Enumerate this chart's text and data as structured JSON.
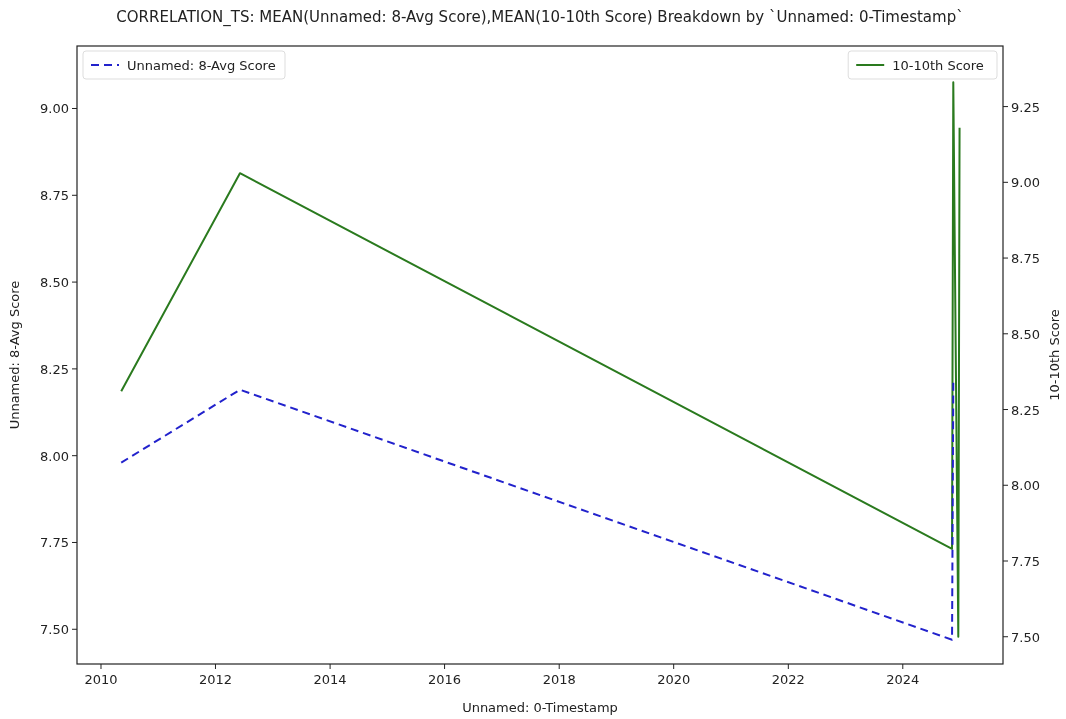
{
  "chart_data": {
    "type": "line",
    "title": "CORRELATION_TS: MEAN(Unnamed: 8-Avg Score),MEAN(10-10th Score) Breakdown by `Unnamed: 0-Timestamp`",
    "xlabel": "Unnamed: 0-Timestamp",
    "ylabel": "Unnamed: 8-Avg Score",
    "y2label": "10-10th Score",
    "xlim": [
      "2009-08",
      "2025-10"
    ],
    "xticks": [
      "2010",
      "2012",
      "2014",
      "2016",
      "2018",
      "2020",
      "2022",
      "2024"
    ],
    "ylim": [
      7.4,
      9.18
    ],
    "yticks": [
      {
        "value": 7.5,
        "label": "7.50"
      },
      {
        "value": 7.75,
        "label": "7.75"
      },
      {
        "value": 8,
        "label": "8.00"
      },
      {
        "value": 8.25,
        "label": "8.25"
      },
      {
        "value": 8.5,
        "label": "8.50"
      },
      {
        "value": 8.75,
        "label": "8.75"
      },
      {
        "value": 9,
        "label": "9.00"
      }
    ],
    "y2lim": [
      7.41,
      9.45
    ],
    "y2ticks": [
      {
        "value": 7.5,
        "label": "7.50"
      },
      {
        "value": 7.75,
        "label": "7.75"
      },
      {
        "value": 8,
        "label": "8.00"
      },
      {
        "value": 8.25,
        "label": "8.25"
      },
      {
        "value": 8.5,
        "label": "8.50"
      },
      {
        "value": 8.75,
        "label": "8.75"
      },
      {
        "value": 9,
        "label": "9.00"
      },
      {
        "value": 9.25,
        "label": "9.25"
      }
    ],
    "series": [
      {
        "name": "Unnamed: 8-Avg Score",
        "color": "#2222cc",
        "line_style": "dashed",
        "x": [
          "2010-05-10",
          "2012-06-05",
          "2024-11-10",
          "2024-11-18"
        ],
        "values": [
          7.98,
          8.19,
          7.47,
          8.21
        ]
      },
      {
        "name": "10-10th Score",
        "color": "#2a7a1e",
        "axis": "y2",
        "line_style": "solid",
        "x": [
          "2010-05-10",
          "2012-06-05",
          "2024-11-10",
          "2024-11-18",
          "2024-12-20",
          "2024-12-28"
        ],
        "values": [
          8.31,
          9.03,
          7.79,
          9.33,
          7.5,
          9.18
        ]
      }
    ],
    "legend": "top",
    "grid": false,
    "marker": "none"
  }
}
